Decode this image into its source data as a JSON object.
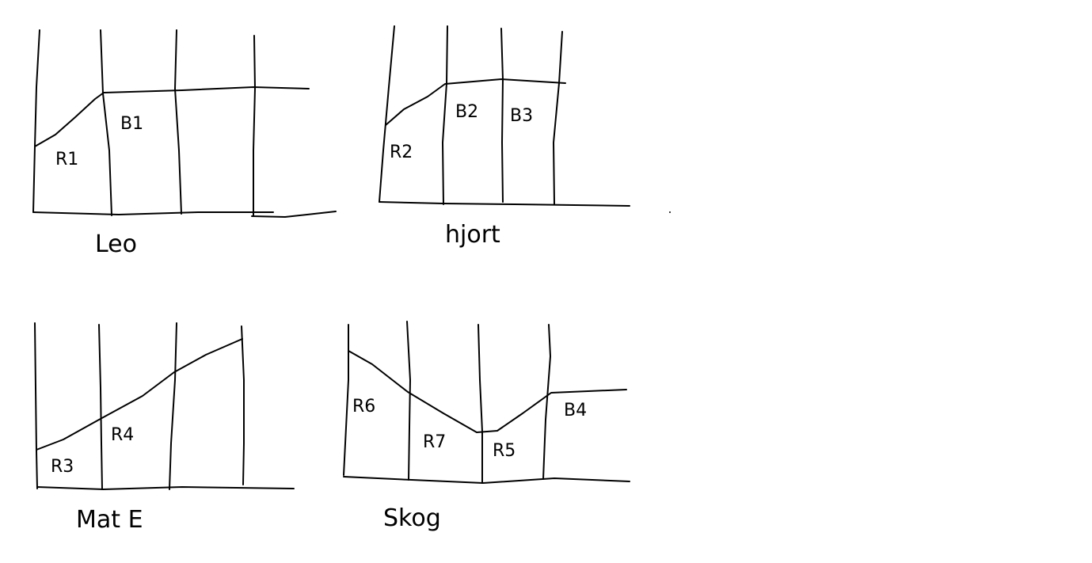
{
  "diagrams": [
    {
      "id": "leo",
      "caption": "Leo",
      "labels": {
        "r1": "R1",
        "b1": "B1"
      }
    },
    {
      "id": "hjort",
      "caption": "hjort",
      "labels": {
        "r2": "R2",
        "b2": "B2",
        "b3": "B3"
      }
    },
    {
      "id": "mate",
      "caption": "Mat E",
      "labels": {
        "r3": "R3",
        "r4": "R4"
      }
    },
    {
      "id": "skog",
      "caption": "Skog",
      "labels": {
        "r6": "R6",
        "r7": "R7",
        "r5": "R5",
        "b4": "B4"
      }
    }
  ]
}
